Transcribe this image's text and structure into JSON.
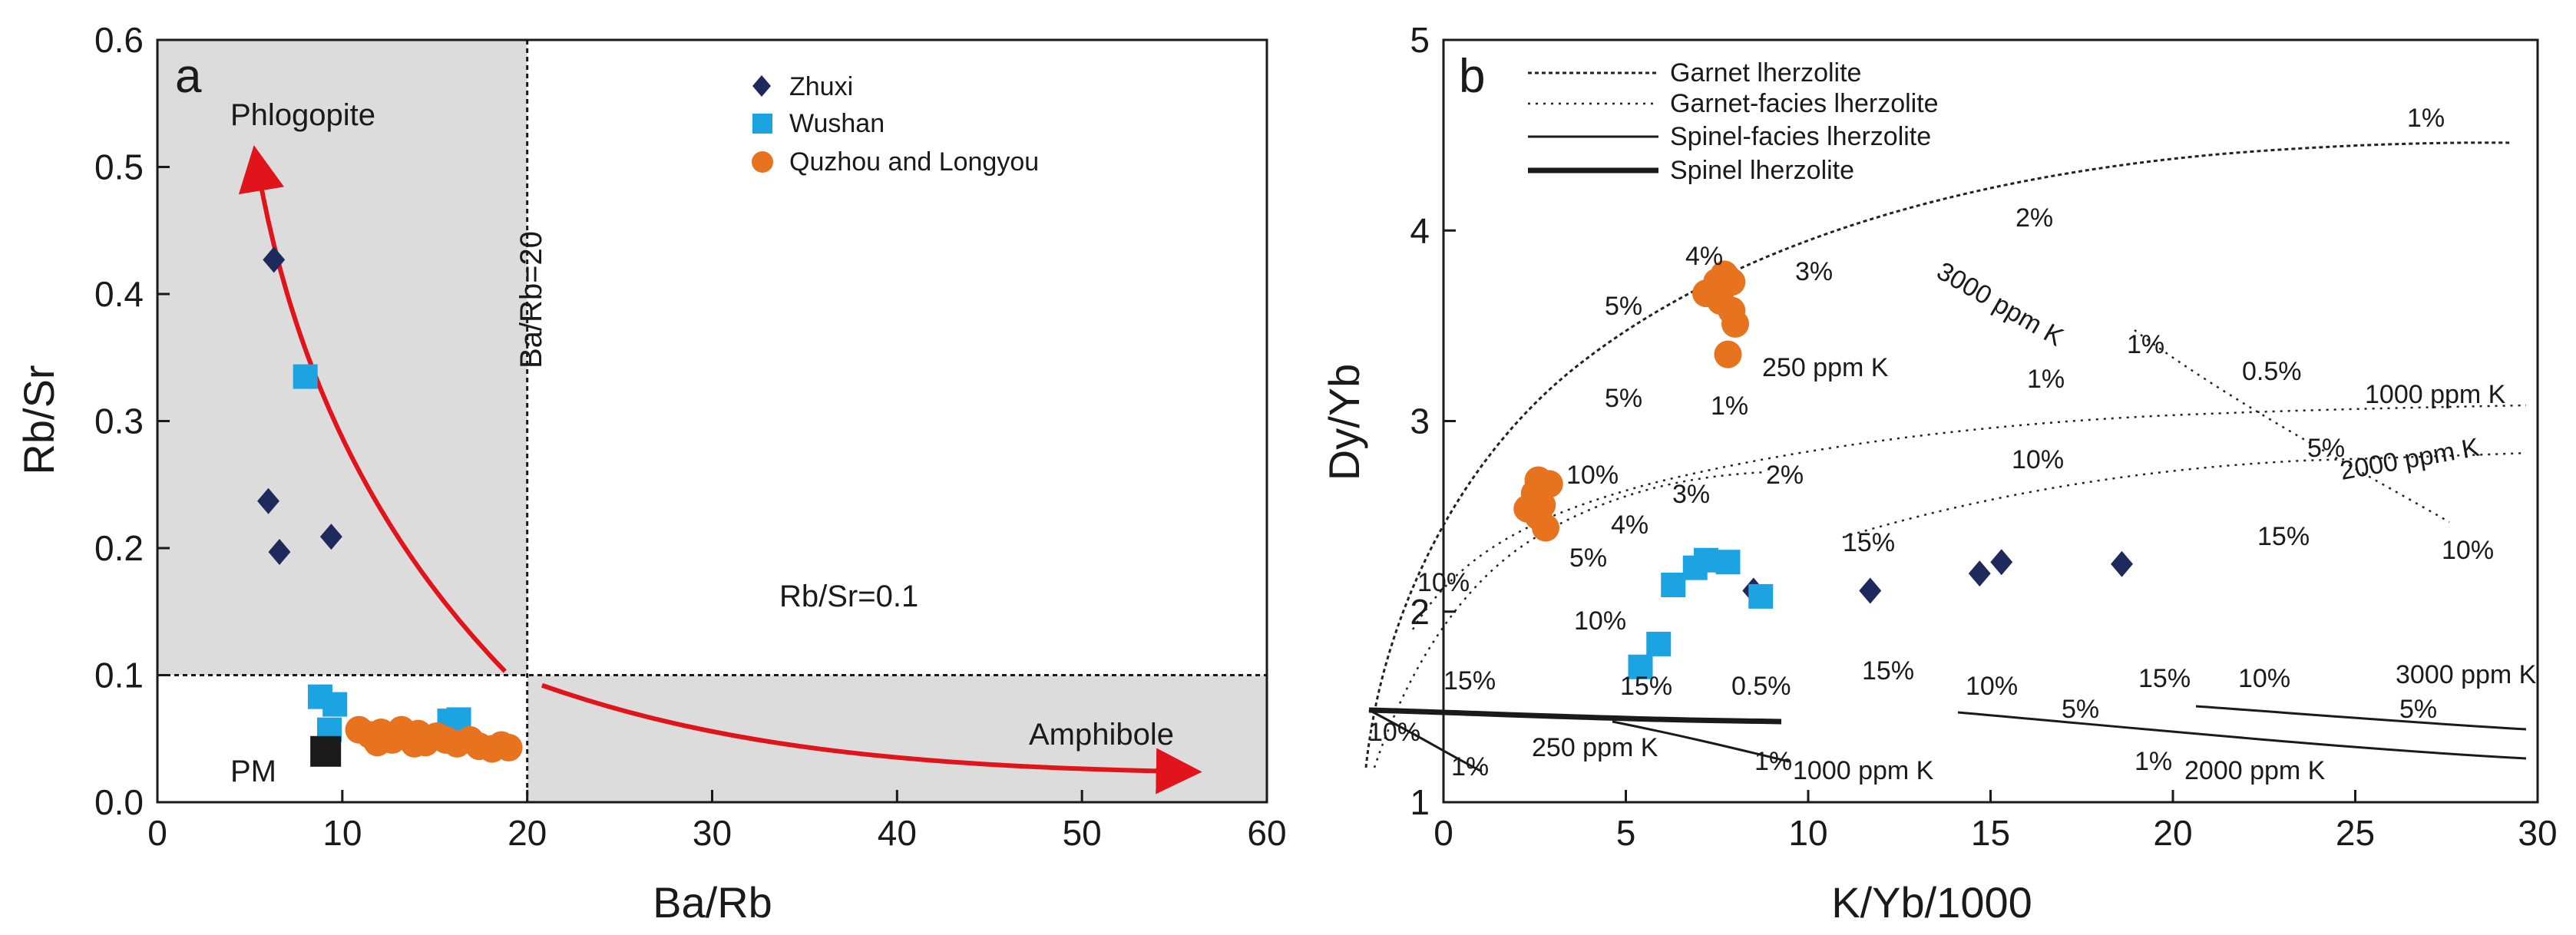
{
  "colors": {
    "zhuxi": "#1f2a5c",
    "wushan": "#1ba3e2",
    "quzhou": "#e8731f",
    "pm": "#1a1a1a",
    "arrow": "#e0141a",
    "shade": "#dcdcdc",
    "curve": "#222222"
  },
  "icons": {
    "zhuxi": "diamond-icon",
    "wushan": "square-icon",
    "quzhou": "circle-icon",
    "pm": "square-icon"
  },
  "chart_data": [
    {
      "type": "scatter",
      "panel_label": "a",
      "xlabel": "Ba/Rb",
      "ylabel": "Rb/Sr",
      "xlim": [
        0,
        60
      ],
      "ylim": [
        0,
        0.6
      ],
      "xticks": [
        "0",
        "10",
        "20",
        "30",
        "40",
        "50",
        "60"
      ],
      "yticks": [
        "0.0",
        "0.1",
        "0.2",
        "0.3",
        "0.4",
        "0.5",
        "0.6"
      ],
      "grid": false,
      "legend_position": "top-right",
      "annotations": {
        "phlogopite": "Phlogopite",
        "amphibole": "Amphibole",
        "pm": "PM",
        "ba_rb_line": "Ba/Rb=20",
        "rb_sr_line": "Rb/Sr=0.1"
      },
      "reference_lines": {
        "x": 20,
        "y": 0.1
      },
      "series": [
        {
          "name": "Zhuxi",
          "marker": "diamond",
          "points": [
            [
              6.3,
              0.427
            ],
            [
              6.0,
              0.237
            ],
            [
              6.6,
              0.197
            ],
            [
              9.4,
              0.209
            ]
          ]
        },
        {
          "name": "Wushan",
          "marker": "square",
          "points": [
            [
              8.0,
              0.335
            ],
            [
              8.8,
              0.083
            ],
            [
              9.6,
              0.077
            ],
            [
              9.3,
              0.057
            ],
            [
              15.8,
              0.064
            ],
            [
              16.3,
              0.065
            ]
          ]
        },
        {
          "name": "Quzhou and Longyou",
          "marker": "circle",
          "points": [
            [
              10.9,
              0.057
            ],
            [
              11.5,
              0.053
            ],
            [
              12.1,
              0.055
            ],
            [
              12.7,
              0.049
            ],
            [
              13.2,
              0.057
            ],
            [
              13.6,
              0.052
            ],
            [
              14.1,
              0.054
            ],
            [
              14.5,
              0.047
            ],
            [
              15.1,
              0.052
            ],
            [
              15.6,
              0.049
            ],
            [
              16.2,
              0.046
            ],
            [
              16.9,
              0.049
            ],
            [
              17.4,
              0.044
            ],
            [
              18.1,
              0.042
            ],
            [
              18.6,
              0.045
            ],
            [
              19.0,
              0.043
            ],
            [
              11.9,
              0.047
            ],
            [
              13.9,
              0.046
            ]
          ]
        },
        {
          "name": "PM",
          "marker": "square",
          "points": [
            [
              9.1,
              0.04
            ]
          ]
        }
      ]
    },
    {
      "type": "line",
      "panel_label": "b",
      "xlabel": "K/Yb/1000",
      "ylabel": "Dy/Yb",
      "xlim": [
        0,
        30
      ],
      "ylim": [
        1,
        5
      ],
      "xticks": [
        "0",
        "5",
        "10",
        "15",
        "20",
        "25",
        "30"
      ],
      "yticks": [
        "1",
        "2",
        "3",
        "4",
        "5"
      ],
      "grid": false,
      "legend_position": "top-left",
      "legend": [
        {
          "label": "Garnet lherzolite",
          "style": "dotted"
        },
        {
          "label": "Garnet-facies lherzolite",
          "style": "fine-dotted"
        },
        {
          "label": "Spinel-facies lherzolite",
          "style": "thin-solid"
        },
        {
          "label": "Spinel lherzolite",
          "style": "thick-solid"
        }
      ],
      "series": [
        {
          "name": "Zhuxi",
          "marker": "diamond",
          "points": [
            [
              8.5,
              2.11
            ],
            [
              11.7,
              2.11
            ],
            [
              14.7,
              2.2
            ],
            [
              15.3,
              2.26
            ],
            [
              18.6,
              2.25
            ]
          ]
        },
        {
          "name": "Wushan",
          "marker": "square",
          "points": [
            [
              5.4,
              1.71
            ],
            [
              5.9,
              1.83
            ],
            [
              6.3,
              2.14
            ],
            [
              6.9,
              2.23
            ],
            [
              7.2,
              2.27
            ],
            [
              7.8,
              2.26
            ],
            [
              8.7,
              2.08
            ]
          ]
        },
        {
          "name": "Quzhou and Longyou",
          "marker": "circle",
          "points": [
            [
              2.3,
              2.54
            ],
            [
              2.5,
              2.62
            ],
            [
              2.6,
              2.69
            ],
            [
              2.9,
              2.67
            ],
            [
              2.6,
              2.5
            ],
            [
              2.8,
              2.44
            ],
            [
              2.7,
              2.56
            ],
            [
              7.2,
              3.67
            ],
            [
              7.5,
              3.73
            ],
            [
              7.7,
              3.77
            ],
            [
              7.9,
              3.73
            ],
            [
              7.6,
              3.63
            ],
            [
              7.9,
              3.58
            ],
            [
              8.0,
              3.51
            ],
            [
              7.8,
              3.35
            ]
          ]
        }
      ],
      "curve_labels": {
        "garnet_1": "1%",
        "garnet_2": "2%",
        "garnet_3": "3%",
        "garnet_4": "4%",
        "garnet_5": "5%",
        "garnet_10": "10%",
        "garnet_15": "15%",
        "gf250_name": "250 ppm K",
        "gf250_1": "1%",
        "gf250_5": "5%",
        "gf250_10": "10%",
        "gf1000_1": "1%",
        "gf1000_2": "2%",
        "gf1000_3": "3%",
        "gf1000_4": "4%",
        "gf1000_5": "5%",
        "gf1000_10": "10%",
        "gf3000_name": "3000 ppm K",
        "gf3000_1": "1%",
        "gf3000_5": "5%",
        "gf3000_10": "10%",
        "gf_1000_name": "1000 ppm K",
        "gf_05": "0.5%",
        "gf_2000_name": "2000 ppm K",
        "gf_15a": "15%",
        "gf_15b": "15%",
        "gf2_1": "1%",
        "gf2_2": "2%",
        "gf2_10": "10%",
        "sp_15": "15%",
        "sp_05": "0.5%",
        "sp_10": "10%",
        "sp_1a": "1%",
        "sp_1b": "1%",
        "sp_250": "250 ppm K",
        "sp_1000": "1000 ppm K",
        "sf_15a": "15%",
        "sf_10a": "10%",
        "sf_5a": "5%",
        "sf_1": "1%",
        "sf_2000": "2000 ppm K",
        "sf_15b": "15%",
        "sf_10b": "10%",
        "sf_3000": "3000 ppm K",
        "sf_5b": "5%"
      }
    }
  ]
}
